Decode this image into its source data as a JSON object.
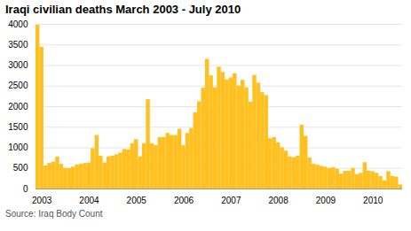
{
  "chart_data": {
    "type": "bar",
    "title": "Iraqi civilian deaths March 2003 - July 2010",
    "annotations": [
      "Source: Iraq Body Count"
    ],
    "categories": [
      null,
      "2003",
      null,
      null,
      null,
      null,
      null,
      null,
      null,
      null,
      null,
      null,
      null,
      "2004",
      null,
      null,
      null,
      null,
      null,
      null,
      null,
      null,
      null,
      null,
      null,
      "2005",
      null,
      null,
      null,
      null,
      null,
      null,
      null,
      null,
      null,
      null,
      null,
      "2006",
      null,
      null,
      null,
      null,
      null,
      null,
      null,
      null,
      null,
      null,
      null,
      "2007",
      null,
      null,
      null,
      null,
      null,
      null,
      null,
      null,
      null,
      null,
      null,
      "2008",
      null,
      null,
      null,
      null,
      null,
      null,
      null,
      null,
      null,
      null,
      null,
      "2009",
      null,
      null,
      null,
      null,
      null,
      null,
      null,
      null,
      null,
      null,
      null,
      "2010",
      null,
      null,
      null,
      null,
      null,
      null,
      null
    ],
    "values": [
      3977,
      3444,
      560,
      620,
      650,
      780,
      600,
      500,
      500,
      530,
      580,
      600,
      620,
      630,
      980,
      1300,
      800,
      630,
      780,
      800,
      830,
      870,
      960,
      950,
      1100,
      1200,
      780,
      1100,
      2170,
      1100,
      1050,
      1250,
      1250,
      1350,
      1300,
      1300,
      1450,
      1050,
      1350,
      1470,
      1850,
      2120,
      2450,
      3150,
      2750,
      2460,
      2960,
      2830,
      2650,
      2700,
      2800,
      2500,
      2640,
      2460,
      2110,
      2760,
      2570,
      2340,
      2270,
      1220,
      1250,
      1120,
      1000,
      920,
      780,
      760,
      800,
      1550,
      1280,
      750,
      600,
      580,
      550,
      530,
      500,
      520,
      480,
      360,
      430,
      430,
      500,
      350,
      380,
      640,
      430,
      420,
      380,
      300,
      200,
      420,
      300,
      290,
      100
    ],
    "color": "#FFC020",
    "ylim": [
      0,
      4000
    ],
    "yticks": [
      0,
      500,
      1000,
      1500,
      2000,
      2500,
      3000,
      3500,
      4000
    ],
    "grid": true
  }
}
